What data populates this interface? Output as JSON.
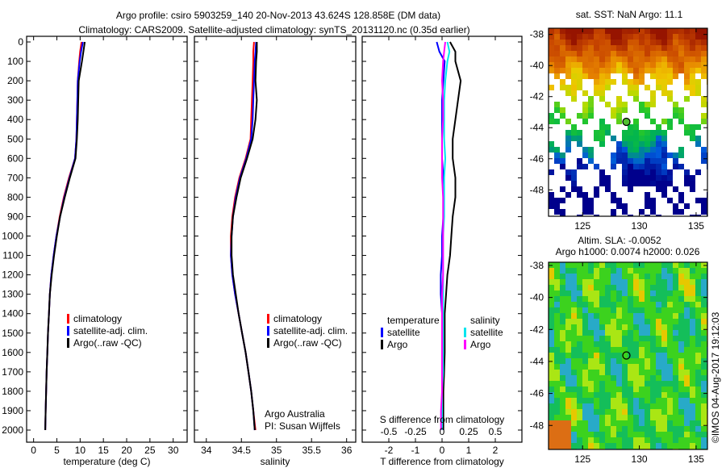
{
  "title_line1": "Argo profile: csiro 5903259_140 20-Nov-2013 43.624S 128.858E (DM data)",
  "title_line2": "Climatology: CARS2009. Satellite-adjusted climatology: synTS_20131120.nc (0.35d earlier)",
  "credit": "©IMOS 04-Aug-2017 19:12:03",
  "attribution": {
    "line1": "Argo Australia",
    "line2": "PI: Susan Wijffels"
  },
  "chart_data": [
    {
      "type": "line",
      "id": "temperature",
      "xlabel": "temperature (deg C)",
      "ylabel": "depth",
      "xlim": [
        -1.5,
        33
      ],
      "ylim": [
        2060,
        0
      ],
      "xticks": [
        "0",
        "5",
        "10",
        "15",
        "20",
        "25",
        "30"
      ],
      "xtick_values": [
        0,
        5,
        10,
        15,
        20,
        25,
        30
      ],
      "yticks": [
        "0",
        "100",
        "200",
        "300",
        "400",
        "500",
        "600",
        "700",
        "800",
        "900",
        "1000",
        "1100",
        "1200",
        "1300",
        "1400",
        "1500",
        "1600",
        "1700",
        "1800",
        "1900",
        "2000"
      ],
      "legend": [
        "climatology",
        "satellite-adj. clim.",
        "Argo(..raw -QC)"
      ],
      "colors": [
        "#ff0000",
        "#0000ff",
        "#000000"
      ],
      "depth": [
        0,
        50,
        100,
        200,
        300,
        400,
        500,
        600,
        700,
        800,
        900,
        1000,
        1100,
        1200,
        1300,
        1400,
        1500,
        1600,
        1700,
        1800,
        1900,
        2000
      ],
      "series": [
        {
          "name": "climatology",
          "values": [
            10.3,
            10.0,
            9.8,
            9.5,
            9.4,
            9.3,
            9.2,
            8.9,
            7.6,
            6.5,
            5.6,
            4.9,
            4.3,
            3.8,
            3.5,
            3.3,
            3.1,
            2.95,
            2.8,
            2.7,
            2.6,
            2.5
          ]
        },
        {
          "name": "satellite-adj. clim.",
          "values": [
            10.6,
            10.2,
            9.9,
            9.5,
            9.4,
            9.3,
            9.2,
            8.9,
            7.7,
            6.6,
            5.7,
            4.9,
            4.3,
            3.8,
            3.5,
            3.3,
            3.1,
            2.95,
            2.8,
            2.7,
            2.6,
            2.5
          ]
        },
        {
          "name": "Argo(..raw -QC)",
          "values": [
            11.0,
            10.7,
            10.4,
            9.7,
            9.6,
            9.5,
            9.3,
            9.0,
            7.8,
            6.7,
            5.7,
            5.0,
            4.4,
            3.9,
            3.5,
            3.3,
            3.1,
            2.95,
            2.8,
            2.7,
            2.6,
            2.5
          ]
        }
      ]
    },
    {
      "type": "line",
      "id": "salinity",
      "xlabel": "salinity",
      "xlim": [
        33.83,
        36.13
      ],
      "ylim": [
        2060,
        0
      ],
      "xticks": [
        "34",
        "34.5",
        "35",
        "35.5",
        "36"
      ],
      "xtick_values": [
        34,
        34.5,
        35,
        35.5,
        36
      ],
      "legend": [
        "climatology",
        "satellite-adj. clim.",
        "Argo(..raw -QC)"
      ],
      "colors": [
        "#ff0000",
        "#0000ff",
        "#000000"
      ],
      "depth": [
        0,
        50,
        100,
        200,
        300,
        400,
        500,
        600,
        700,
        800,
        900,
        1000,
        1100,
        1200,
        1300,
        1400,
        1500,
        1600,
        1700,
        1800,
        1900,
        2000
      ],
      "series": [
        {
          "name": "climatology",
          "values": [
            34.68,
            34.67,
            34.67,
            34.66,
            34.65,
            34.64,
            34.63,
            34.56,
            34.47,
            34.41,
            34.37,
            34.35,
            34.35,
            34.37,
            34.41,
            34.46,
            34.51,
            34.56,
            34.6,
            34.64,
            34.67,
            34.7
          ]
        },
        {
          "name": "satellite-adj. clim.",
          "values": [
            34.71,
            34.7,
            34.69,
            34.68,
            34.67,
            34.66,
            34.64,
            34.57,
            34.48,
            34.42,
            34.38,
            34.36,
            34.35,
            34.37,
            34.41,
            34.46,
            34.51,
            34.56,
            34.6,
            34.64,
            34.67,
            34.69
          ]
        },
        {
          "name": "Argo(..raw -QC)",
          "values": [
            34.72,
            34.72,
            34.71,
            34.7,
            34.72,
            34.7,
            34.66,
            34.58,
            34.49,
            34.43,
            34.38,
            34.36,
            34.36,
            34.38,
            34.42,
            34.46,
            34.51,
            34.56,
            34.6,
            34.64,
            34.67,
            34.69
          ]
        }
      ]
    },
    {
      "type": "line",
      "id": "difference",
      "xlabel": "T difference from climatology",
      "xlabel2": "S difference from climatology",
      "xlim": [
        -3,
        3
      ],
      "ylim": [
        2060,
        0
      ],
      "xticks": [
        "-2",
        "-1",
        "0",
        "1",
        "2"
      ],
      "xtick_values": [
        -2,
        -1,
        0,
        1,
        2
      ],
      "xticks2": [
        "-0.5",
        "-0.25",
        "0",
        "0.25",
        "0.5"
      ],
      "xtick2_values": [
        -0.5,
        -0.25,
        0,
        0.25,
        0.5
      ],
      "legend_groups": [
        {
          "title": "temperature",
          "items": [
            "satellite",
            "Argo"
          ]
        },
        {
          "title": "salinity",
          "items": [
            "satellite",
            "Argo"
          ]
        }
      ],
      "colors": [
        "#0000ff",
        "#000000",
        "#00e5ee",
        "#ff00ff"
      ],
      "depth": [
        0,
        50,
        100,
        200,
        300,
        400,
        500,
        600,
        700,
        800,
        900,
        1000,
        1100,
        1200,
        1300,
        1400,
        1500,
        1600,
        1700,
        1800,
        1900,
        2000
      ],
      "series": [
        {
          "name": "temperature satellite",
          "values": [
            -0.2,
            -0.1,
            0.1,
            0.05,
            0.0,
            0.0,
            0.0,
            0.0,
            0.05,
            0.05,
            0.05,
            0.0,
            0.0,
            -0.05,
            -0.05,
            0.0,
            0.0,
            0.0,
            0.0,
            0.0,
            0.0,
            0.0
          ]
        },
        {
          "name": "temperature Argo",
          "values": [
            0.3,
            0.5,
            0.5,
            0.7,
            0.6,
            0.5,
            0.4,
            0.4,
            0.5,
            0.5,
            0.4,
            0.35,
            0.3,
            0.2,
            0.15,
            0.1,
            0.1,
            0.1,
            0.08,
            0.05,
            0.05,
            0.05
          ]
        },
        {
          "name": "salinity satellite",
          "values": [
            0.05,
            0.07,
            0.05,
            0.03,
            0.02,
            0.02,
            0.02,
            0.03,
            0.02,
            0.02,
            0.02,
            0.01,
            0.01,
            0.01,
            0.01,
            0.01,
            0.01,
            0.01,
            0.01,
            0.0,
            0.0,
            0.0
          ]
        },
        {
          "name": "salinity Argo",
          "values": [
            0.03,
            0.02,
            0.01,
            0.0,
            0.01,
            0.01,
            0.0,
            0.0,
            0.0,
            0.01,
            0.01,
            0.01,
            0.01,
            0.01,
            0.0,
            0.0,
            0.0,
            0.0,
            0.0,
            0.0,
            -0.01,
            -0.01
          ]
        }
      ]
    },
    {
      "type": "heatmap",
      "id": "sst-map",
      "title": "sat. SST: NaN Argo: 11.1",
      "xlim": [
        122,
        136
      ],
      "ylim": [
        -49.7,
        -37.6
      ],
      "xticks": [
        "125",
        "130",
        "135"
      ],
      "xtick_values": [
        125,
        130,
        135
      ],
      "yticks": [
        "-38",
        "-40",
        "-42",
        "-44",
        "-46",
        "-48"
      ],
      "ytick_values": [
        -38,
        -40,
        -42,
        -44,
        -46,
        -48
      ],
      "marker": {
        "lon": 128.858,
        "lat": -43.624
      }
    },
    {
      "type": "heatmap",
      "id": "sla-map",
      "title": "Altim. SLA: -0.0052",
      "subtitle": "Argo h1000: 0.0074 h2000: 0.026",
      "xlim": [
        122,
        136
      ],
      "ylim": [
        -49.5,
        -37.8
      ],
      "xticks": [
        "125",
        "130",
        "135"
      ],
      "xtick_values": [
        125,
        130,
        135
      ],
      "yticks": [
        "-38",
        "-40",
        "-42",
        "-44",
        "-46",
        "-48"
      ],
      "ytick_values": [
        -38,
        -40,
        -42,
        -44,
        -46,
        -48
      ],
      "marker": {
        "lon": 128.858,
        "lat": -43.624
      }
    }
  ]
}
